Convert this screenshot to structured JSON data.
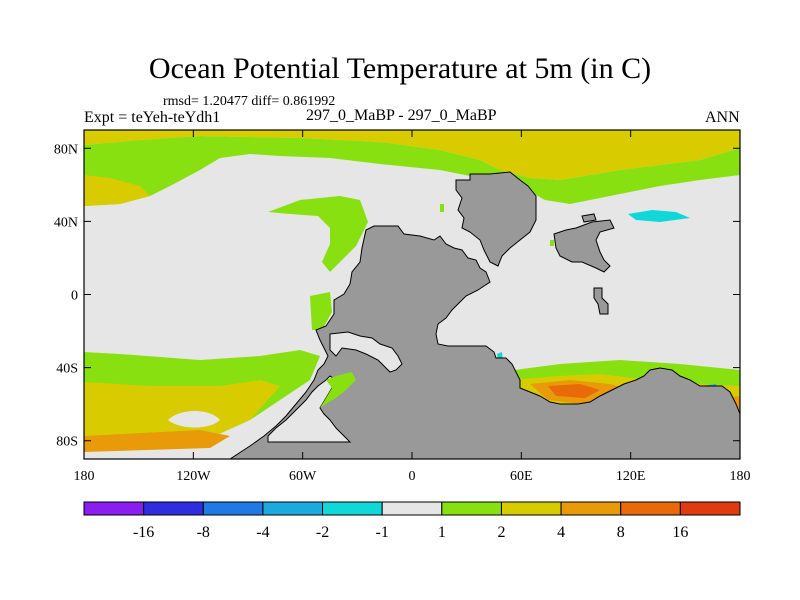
{
  "plot": {
    "title": "Ocean Potential Temperature at 5m (in C)",
    "stats": "rmsd= 1.20477  diff= 0.861992",
    "experiment": "Expt = teYeh-teYdh1",
    "center_label": "297_0_MaBP - 297_0_MaBP",
    "season": "ANN"
  },
  "axes": {
    "lon_ticks": [
      "180",
      "120W",
      "60W",
      "0",
      "60E",
      "120E",
      "180"
    ],
    "lat_ticks": [
      "80N",
      "40N",
      "0",
      "40S",
      "80S"
    ],
    "lon_values": [
      -180,
      -120,
      -60,
      0,
      60,
      120,
      180
    ],
    "lat_values": [
      80,
      40,
      0,
      -40,
      -80
    ],
    "lon_range": [
      -180,
      180
    ],
    "lat_range": [
      -90,
      90
    ]
  },
  "colorbar": {
    "labels": [
      "-16",
      "-8",
      "-4",
      "-2",
      "-1",
      "1",
      "2",
      "4",
      "8",
      "16"
    ],
    "colors": [
      "#8a1df0",
      "#2e2ee0",
      "#1f7ae6",
      "#1aaae0",
      "#10d8d8",
      "#e6e6e6",
      "#88e010",
      "#d8cc00",
      "#e89a08",
      "#e86a08",
      "#e03a10"
    ]
  },
  "map_colors": {
    "land": "#999999",
    "zero": "#e6e6e6",
    "green": "#88e010",
    "yellow": "#d8cc00",
    "orange": "#e89a08",
    "dark_orange": "#e86a08",
    "cyan": "#10d8d8",
    "blue": "#1aaae0"
  }
}
